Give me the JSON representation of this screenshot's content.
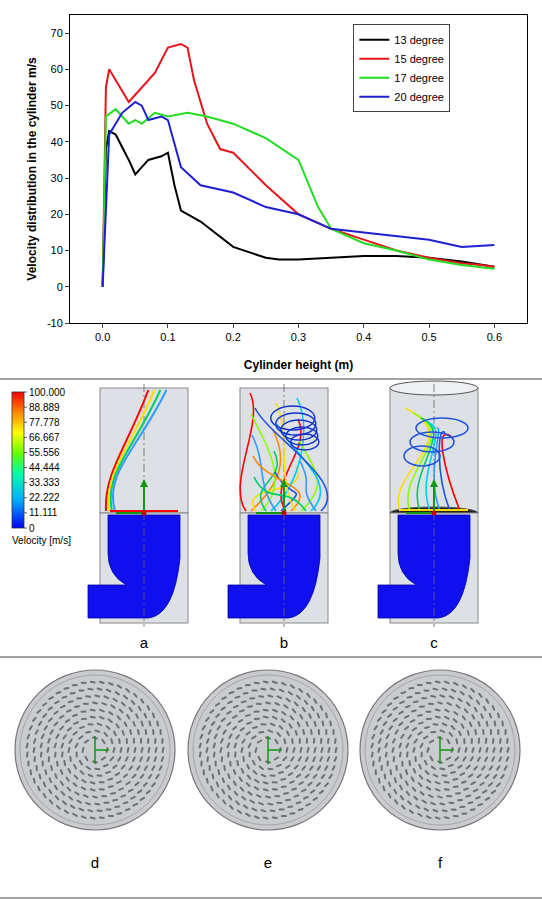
{
  "chart_data": {
    "type": "line",
    "x_label": "Cylinder height (m)",
    "y_label": "Velocity distribution in the cylinder m/s",
    "xlim": [
      -0.05,
      0.65
    ],
    "xticks": [
      {
        "value": 0,
        "label": "0.0"
      },
      0.1,
      0.2,
      0.3,
      0.4,
      0.5,
      0.6
    ],
    "ylim": [
      -10,
      75
    ],
    "yticks": [
      -10,
      0,
      10,
      20,
      30,
      40,
      50,
      60,
      70
    ],
    "grid": false,
    "legend": "upper right",
    "series": [
      {
        "name": "13 degree",
        "color": "#000000",
        "x": [
          0,
          0.005,
          0.01,
          0.02,
          0.04,
          0.05,
          0.06,
          0.07,
          0.09,
          0.1,
          0.11,
          0.12,
          0.15,
          0.2,
          0.25,
          0.27,
          0.3,
          0.35,
          0.4,
          0.45,
          0.5,
          0.55,
          0.58,
          0.6
        ],
        "values": [
          0,
          38,
          43,
          42,
          35,
          31,
          33,
          35,
          36,
          37,
          28,
          21,
          18,
          11,
          8,
          7.5,
          7.5,
          8,
          8.5,
          8.5,
          8,
          7,
          6,
          5.5
        ]
      },
      {
        "name": "15 degree",
        "color": "#e8141c",
        "x": [
          0,
          0.005,
          0.01,
          0.02,
          0.04,
          0.05,
          0.06,
          0.08,
          0.1,
          0.12,
          0.13,
          0.14,
          0.16,
          0.18,
          0.2,
          0.25,
          0.3,
          0.35,
          0.4,
          0.45,
          0.5,
          0.55,
          0.58,
          0.6
        ],
        "values": [
          0,
          55,
          60,
          57,
          51,
          53,
          55,
          59,
          66,
          67,
          66,
          57,
          45,
          38,
          37,
          28,
          20,
          16,
          13,
          10,
          8,
          6.5,
          6,
          5.5
        ]
      },
      {
        "name": "17 degree",
        "color": "#22dd22",
        "x": [
          0,
          0.005,
          0.02,
          0.04,
          0.05,
          0.06,
          0.08,
          0.1,
          0.13,
          0.16,
          0.2,
          0.25,
          0.3,
          0.33,
          0.35,
          0.4,
          0.45,
          0.5,
          0.55,
          0.6
        ],
        "values": [
          0,
          47,
          49,
          45,
          46,
          45,
          48,
          47,
          48,
          47,
          45,
          41,
          35,
          22,
          16,
          12,
          10,
          7.5,
          6,
          5
        ]
      },
      {
        "name": "20 degree",
        "color": "#1f1fd0",
        "x": [
          0,
          0.01,
          0.03,
          0.05,
          0.06,
          0.07,
          0.09,
          0.1,
          0.12,
          0.15,
          0.2,
          0.25,
          0.3,
          0.35,
          0.4,
          0.45,
          0.5,
          0.55,
          0.6
        ],
        "values": [
          0,
          42,
          48,
          51,
          50,
          46,
          47,
          46,
          33,
          28,
          26,
          22,
          20,
          16,
          15,
          14,
          13,
          11,
          11.5
        ]
      }
    ]
  },
  "flow_panels": {
    "labels": [
      "a",
      "b",
      "c"
    ],
    "colorbar": {
      "title": "Velocity [m/s]",
      "range": [
        0,
        100
      ],
      "ticks": [
        {
          "value": 100,
          "label": "100.000"
        },
        88.889,
        77.778,
        66.667,
        55.556,
        44.444,
        33.333,
        22.222,
        11.111,
        0
      ]
    }
  },
  "disk_panels": {
    "labels": [
      "d",
      "e",
      "f"
    ]
  }
}
